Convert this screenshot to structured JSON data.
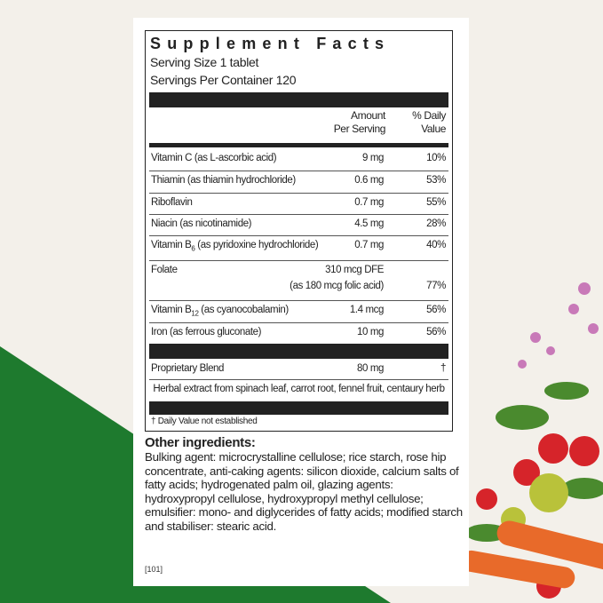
{
  "colors": {
    "background": "#f3f0ea",
    "green": "#1e7a2e",
    "card": "#ffffff",
    "ink": "#222222"
  },
  "label": {
    "title": "Supplement Facts",
    "serving_size": "Serving Size 1 tablet",
    "servings_per_container": "Servings Per Container 120",
    "col_amount": [
      "Amount",
      "Per Serving"
    ],
    "col_dv": [
      "% Daily",
      "Value"
    ],
    "rows": [
      {
        "name": "Vitamin C (as L-ascorbic acid)",
        "amount": "9 mg",
        "dv": "10%"
      },
      {
        "name": "Thiamin (as thiamin hydrochloride)",
        "amount": "0.6 mg",
        "dv": "53%"
      },
      {
        "name": "Riboflavin",
        "amount": "0.7 mg",
        "dv": "55%"
      },
      {
        "name": "Niacin (as nicotinamide)",
        "amount": "4.5 mg",
        "dv": "28%"
      },
      {
        "name_pre": "Vitamin B",
        "name_sub": "6",
        "name_post": " (as pyridoxine hydrochloride)",
        "amount": "0.7 mg",
        "dv": "40%"
      },
      {
        "name": "Folate",
        "amount": "310 mcg DFE",
        "amount2": "(as 180 mcg folic acid)",
        "dv": "77%"
      },
      {
        "name_pre": "Vitamin B",
        "name_sub": "12",
        "name_post": " (as cyanocobalamin)",
        "amount": "1.4 mcg",
        "dv": "56%"
      },
      {
        "name": "Iron (as ferrous gluconate)",
        "amount": "10 mg",
        "dv": "56%"
      }
    ],
    "blend": {
      "name": "Proprietary Blend",
      "amount": "80 mg",
      "dv": "†",
      "detail": "Herbal extract from spinach leaf, carrot root, fennel fruit, centaury herb"
    },
    "footnote": "† Daily Value not established"
  },
  "other": {
    "heading": "Other ingredients:",
    "text": "Bulking agent: microcrystalline cellulose; rice starch, rose hip concentrate, anti-caking agents: silicon dioxide, calcium salts of fatty acids; hydrogenated palm oil, glazing agents: hydroxypropyl cellulose, hydroxypropyl methyl cellulose; emulsifier: mono- and diglycerides of fatty acids; modified starch and stabiliser: stearic acid."
  },
  "code": "[101]"
}
